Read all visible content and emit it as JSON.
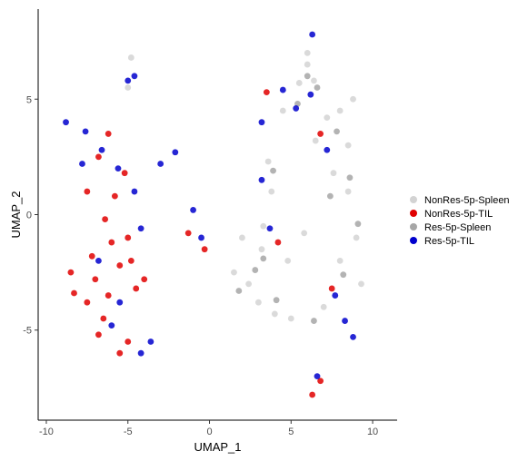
{
  "chart_data": {
    "type": "scatter",
    "title": "",
    "xlabel": "UMAP_1",
    "ylabel": "UMAP_2",
    "xlim": [
      -10.5,
      11.5
    ],
    "ylim": [
      -8.9,
      8.9
    ],
    "x_ticks": [
      -10,
      -5,
      0,
      5,
      10
    ],
    "x_tick_labels": [
      "-10",
      "-5",
      "0",
      "5",
      "10"
    ],
    "y_ticks": [
      -5,
      0,
      5
    ],
    "y_tick_labels": [
      "-5",
      "0",
      "5"
    ],
    "grid": false,
    "legend_position": "right",
    "series": [
      {
        "name": "NonRes-5p-Spleen",
        "color": "#d3d3d3",
        "points": [
          [
            1.5,
            -2.5
          ],
          [
            2.4,
            -3.0
          ],
          [
            3.2,
            -1.5
          ],
          [
            4.0,
            -4.3
          ],
          [
            3.6,
            2.3
          ],
          [
            4.5,
            4.5
          ],
          [
            5.5,
            5.7
          ],
          [
            6.0,
            7.0
          ],
          [
            6.4,
            5.8
          ],
          [
            7.2,
            4.2
          ],
          [
            8.0,
            4.5
          ],
          [
            8.5,
            3.0
          ],
          [
            8.5,
            1.0
          ],
          [
            9.0,
            -1.0
          ],
          [
            9.3,
            -3.0
          ],
          [
            7.0,
            -4.0
          ],
          [
            5.0,
            -4.5
          ],
          [
            3.3,
            -0.5
          ],
          [
            3.0,
            -3.8
          ],
          [
            2.0,
            -1.0
          ],
          [
            6.0,
            6.5
          ],
          [
            8.8,
            5.0
          ],
          [
            -5.0,
            5.5
          ],
          [
            -4.8,
            6.8
          ],
          [
            4.8,
            -2.0
          ],
          [
            6.5,
            3.2
          ],
          [
            7.6,
            1.8
          ],
          [
            5.8,
            -0.8
          ],
          [
            8.0,
            -2.0
          ],
          [
            3.8,
            1.0
          ]
        ]
      },
      {
        "name": "NonRes-5p-TIL",
        "color": "#e00000",
        "points": [
          [
            -8.3,
            -3.4
          ],
          [
            -7.0,
            -2.8
          ],
          [
            -6.2,
            -3.5
          ],
          [
            -5.5,
            -2.2
          ],
          [
            -5.0,
            -1.0
          ],
          [
            -5.8,
            0.8
          ],
          [
            -6.8,
            2.5
          ],
          [
            -6.2,
            3.5
          ],
          [
            -7.5,
            1.0
          ],
          [
            -4.5,
            -3.2
          ],
          [
            -4.0,
            -2.8
          ],
          [
            -5.5,
            -6.0
          ],
          [
            -5.0,
            -5.5
          ],
          [
            -6.5,
            -4.5
          ],
          [
            -7.5,
            -3.8
          ],
          [
            -6.0,
            -1.2
          ],
          [
            -4.8,
            -2.0
          ],
          [
            -6.4,
            -0.2
          ],
          [
            -5.2,
            1.8
          ],
          [
            -7.2,
            -1.8
          ],
          [
            -1.3,
            -0.8
          ],
          [
            -0.3,
            -1.5
          ],
          [
            3.5,
            5.3
          ],
          [
            6.3,
            -7.8
          ],
          [
            6.8,
            -7.2
          ],
          [
            4.2,
            -1.2
          ],
          [
            6.8,
            3.5
          ],
          [
            7.5,
            -3.2
          ],
          [
            -8.5,
            -2.5
          ],
          [
            -6.8,
            -5.2
          ]
        ]
      },
      {
        "name": "Res-5p-Spleen",
        "color": "#a6a6a6",
        "points": [
          [
            5.4,
            4.8
          ],
          [
            6.6,
            5.5
          ],
          [
            7.8,
            3.6
          ],
          [
            8.6,
            1.6
          ],
          [
            9.1,
            -0.4
          ],
          [
            8.2,
            -2.6
          ],
          [
            6.4,
            -4.6
          ],
          [
            2.8,
            -2.4
          ],
          [
            4.1,
            -3.7
          ],
          [
            3.9,
            1.9
          ],
          [
            6.0,
            6.0
          ],
          [
            7.4,
            0.8
          ],
          [
            1.8,
            -3.3
          ],
          [
            3.3,
            -1.9
          ]
        ]
      },
      {
        "name": "Res-5p-TIL",
        "color": "#0000cd",
        "points": [
          [
            -8.8,
            4.0
          ],
          [
            -7.6,
            3.6
          ],
          [
            -6.6,
            2.8
          ],
          [
            -5.6,
            2.0
          ],
          [
            -4.6,
            1.0
          ],
          [
            -4.2,
            -0.6
          ],
          [
            -5.5,
            -3.8
          ],
          [
            -6.8,
            -2.0
          ],
          [
            -3.6,
            -5.5
          ],
          [
            -4.2,
            -6.0
          ],
          [
            -3.0,
            2.2
          ],
          [
            -2.1,
            2.7
          ],
          [
            -1.0,
            0.2
          ],
          [
            -0.5,
            -1.0
          ],
          [
            3.2,
            4.0
          ],
          [
            4.5,
            5.4
          ],
          [
            5.3,
            4.6
          ],
          [
            6.3,
            7.8
          ],
          [
            6.2,
            5.2
          ],
          [
            7.2,
            2.8
          ],
          [
            7.7,
            -3.5
          ],
          [
            8.8,
            -5.3
          ],
          [
            6.6,
            -7.0
          ],
          [
            -5.0,
            5.8
          ],
          [
            -4.6,
            6.0
          ],
          [
            -7.8,
            2.2
          ],
          [
            -6.0,
            -4.8
          ],
          [
            3.7,
            -0.6
          ],
          [
            3.2,
            1.5
          ],
          [
            8.3,
            -4.6
          ]
        ]
      }
    ]
  }
}
